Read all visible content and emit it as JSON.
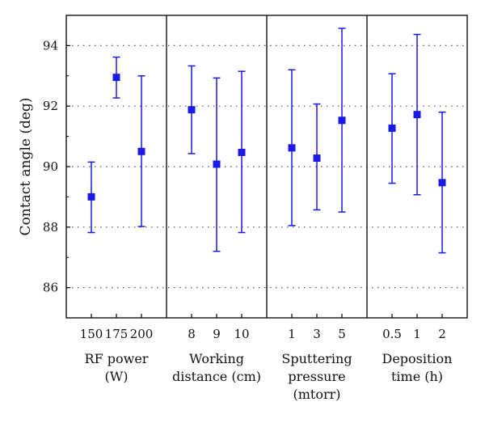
{
  "chart_data": {
    "type": "scatter",
    "ylabel": "Contact angle (deg)",
    "ylim": [
      85,
      95
    ],
    "yticks": [
      86,
      88,
      90,
      92,
      94
    ],
    "grid": "horizontal dotted",
    "marker_color": "#1a1ae6",
    "groups": [
      {
        "label_lines": [
          "RF power",
          "(W)"
        ],
        "categories": [
          "150",
          "175",
          "200"
        ],
        "values": [
          89.0,
          92.95,
          90.5
        ],
        "lower": [
          87.82,
          92.27,
          88.02
        ],
        "upper": [
          90.15,
          93.62,
          93.0
        ]
      },
      {
        "label_lines": [
          "Working",
          "distance (cm)"
        ],
        "categories": [
          "8",
          "9",
          "10"
        ],
        "values": [
          91.88,
          90.08,
          90.47
        ],
        "lower": [
          90.43,
          87.2,
          87.82
        ],
        "upper": [
          93.33,
          92.93,
          93.15
        ]
      },
      {
        "label_lines": [
          "Sputtering",
          "pressure",
          "(mtorr)"
        ],
        "categories": [
          "1",
          "3",
          "5"
        ],
        "values": [
          90.62,
          90.28,
          91.53
        ],
        "lower": [
          88.05,
          88.57,
          88.5
        ],
        "upper": [
          93.2,
          92.07,
          94.57
        ]
      },
      {
        "label_lines": [
          "Deposition",
          "time (h)"
        ],
        "categories": [
          "0.5",
          "1",
          "2"
        ],
        "values": [
          91.27,
          91.72,
          89.47
        ],
        "lower": [
          89.45,
          89.07,
          87.15
        ],
        "upper": [
          93.07,
          94.37,
          91.8
        ]
      }
    ]
  }
}
